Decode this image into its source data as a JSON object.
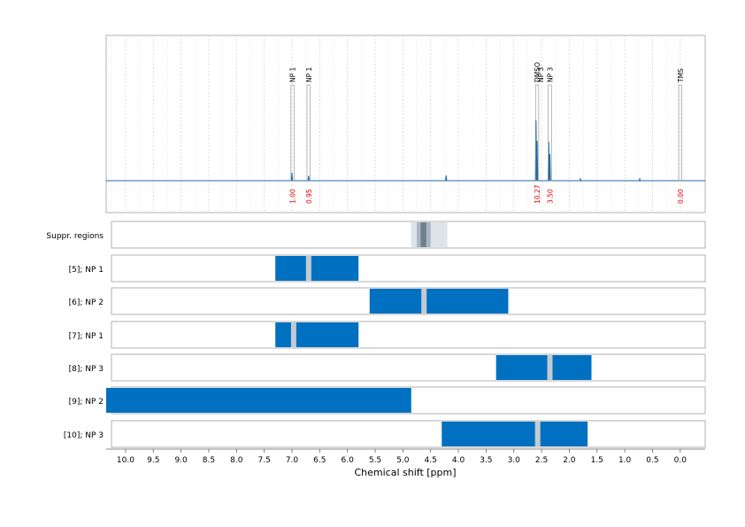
{
  "chart_data": {
    "type": "spectrum",
    "xlabel": "Chemical shift [ppm]",
    "xlim": [
      10.35,
      -0.45
    ],
    "x_ticks": [
      "10.0",
      "9.5",
      "9.0",
      "8.5",
      "8.0",
      "7.5",
      "7.0",
      "6.5",
      "6.0",
      "5.5",
      "5.0",
      "4.5",
      "4.0",
      "3.5",
      "3.0",
      "2.5",
      "2.0",
      "1.5",
      "1.0",
      "0.5",
      "0.0"
    ],
    "grid": true,
    "colors": {
      "spectrum": "#1f6aa8",
      "bar": "#0070c0",
      "gap": "#c3cbd2",
      "integral": "#e00000",
      "frame": "#b0b0b0"
    },
    "spectrum_peaks": [
      {
        "ppm": 7.0,
        "height": 0.09
      },
      {
        "ppm": 6.7,
        "height": 0.055
      },
      {
        "ppm": 4.22,
        "height": 0.06
      },
      {
        "ppm": 2.6,
        "height": 0.68
      },
      {
        "ppm": 2.58,
        "height": 0.45
      },
      {
        "ppm": 2.37,
        "height": 0.44
      },
      {
        "ppm": 2.35,
        "height": 0.3
      },
      {
        "ppm": 1.8,
        "height": 0.02
      },
      {
        "ppm": 0.73,
        "height": 0.02
      }
    ],
    "peak_annotations": [
      {
        "label": "NP 1",
        "ppm": 6.99,
        "integral": "1.00"
      },
      {
        "label": "NP 1",
        "ppm": 6.7,
        "integral": "0.95"
      },
      {
        "label": "DMSO",
        "ppm": 2.58,
        "integral": "10.27"
      },
      {
        "label": "NP 3",
        "ppm": 2.35,
        "integral": "3.50"
      },
      {
        "label": "TMS",
        "ppm": 0.0,
        "integral": "0.00"
      }
    ],
    "extra_labels": [
      {
        "label": "NP 3",
        "ppm": 2.52
      }
    ],
    "suppression": {
      "label": "Suppr. regions",
      "outer": [
        4.85,
        4.2
      ],
      "mid": [
        4.75,
        4.5
      ],
      "inner": [
        4.68,
        4.58
      ]
    },
    "rows": [
      {
        "label": "[5]; NP 1",
        "range": [
          7.3,
          5.8
        ],
        "gap": 6.7
      },
      {
        "label": "[6]; NP 2",
        "range": [
          5.6,
          3.1
        ],
        "gap": 4.62
      },
      {
        "label": "[7]; NP 1",
        "range": [
          7.3,
          5.8
        ],
        "gap": 6.97
      },
      {
        "label": "[8]; NP 3",
        "range": [
          3.32,
          1.6
        ],
        "gap": 2.35
      },
      {
        "label": "[9]; NP 2",
        "range": [
          10.35,
          4.85
        ],
        "gap": null
      },
      {
        "label": "[10]; NP 3",
        "range": [
          4.3,
          1.67
        ],
        "gap": 2.57
      }
    ]
  }
}
